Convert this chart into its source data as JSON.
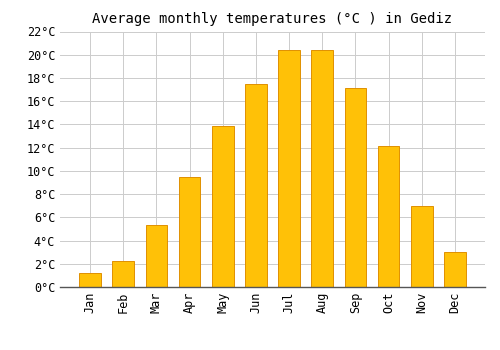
{
  "title": "Average monthly temperatures (°C ) in Gediz",
  "months": [
    "Jan",
    "Feb",
    "Mar",
    "Apr",
    "May",
    "Jun",
    "Jul",
    "Aug",
    "Sep",
    "Oct",
    "Nov",
    "Dec"
  ],
  "values": [
    1.2,
    2.2,
    5.3,
    9.5,
    13.9,
    17.5,
    20.4,
    20.4,
    17.1,
    12.1,
    7.0,
    3.0
  ],
  "bar_color": "#FFC107",
  "bar_edge_color": "#E09000",
  "background_color": "#FFFFFF",
  "plot_bg_color": "#FFFFFF",
  "grid_color": "#CCCCCC",
  "ylim": [
    0,
    22
  ],
  "ytick_step": 2,
  "title_fontsize": 10,
  "tick_fontsize": 8.5,
  "font_family": "monospace",
  "bar_width": 0.65
}
